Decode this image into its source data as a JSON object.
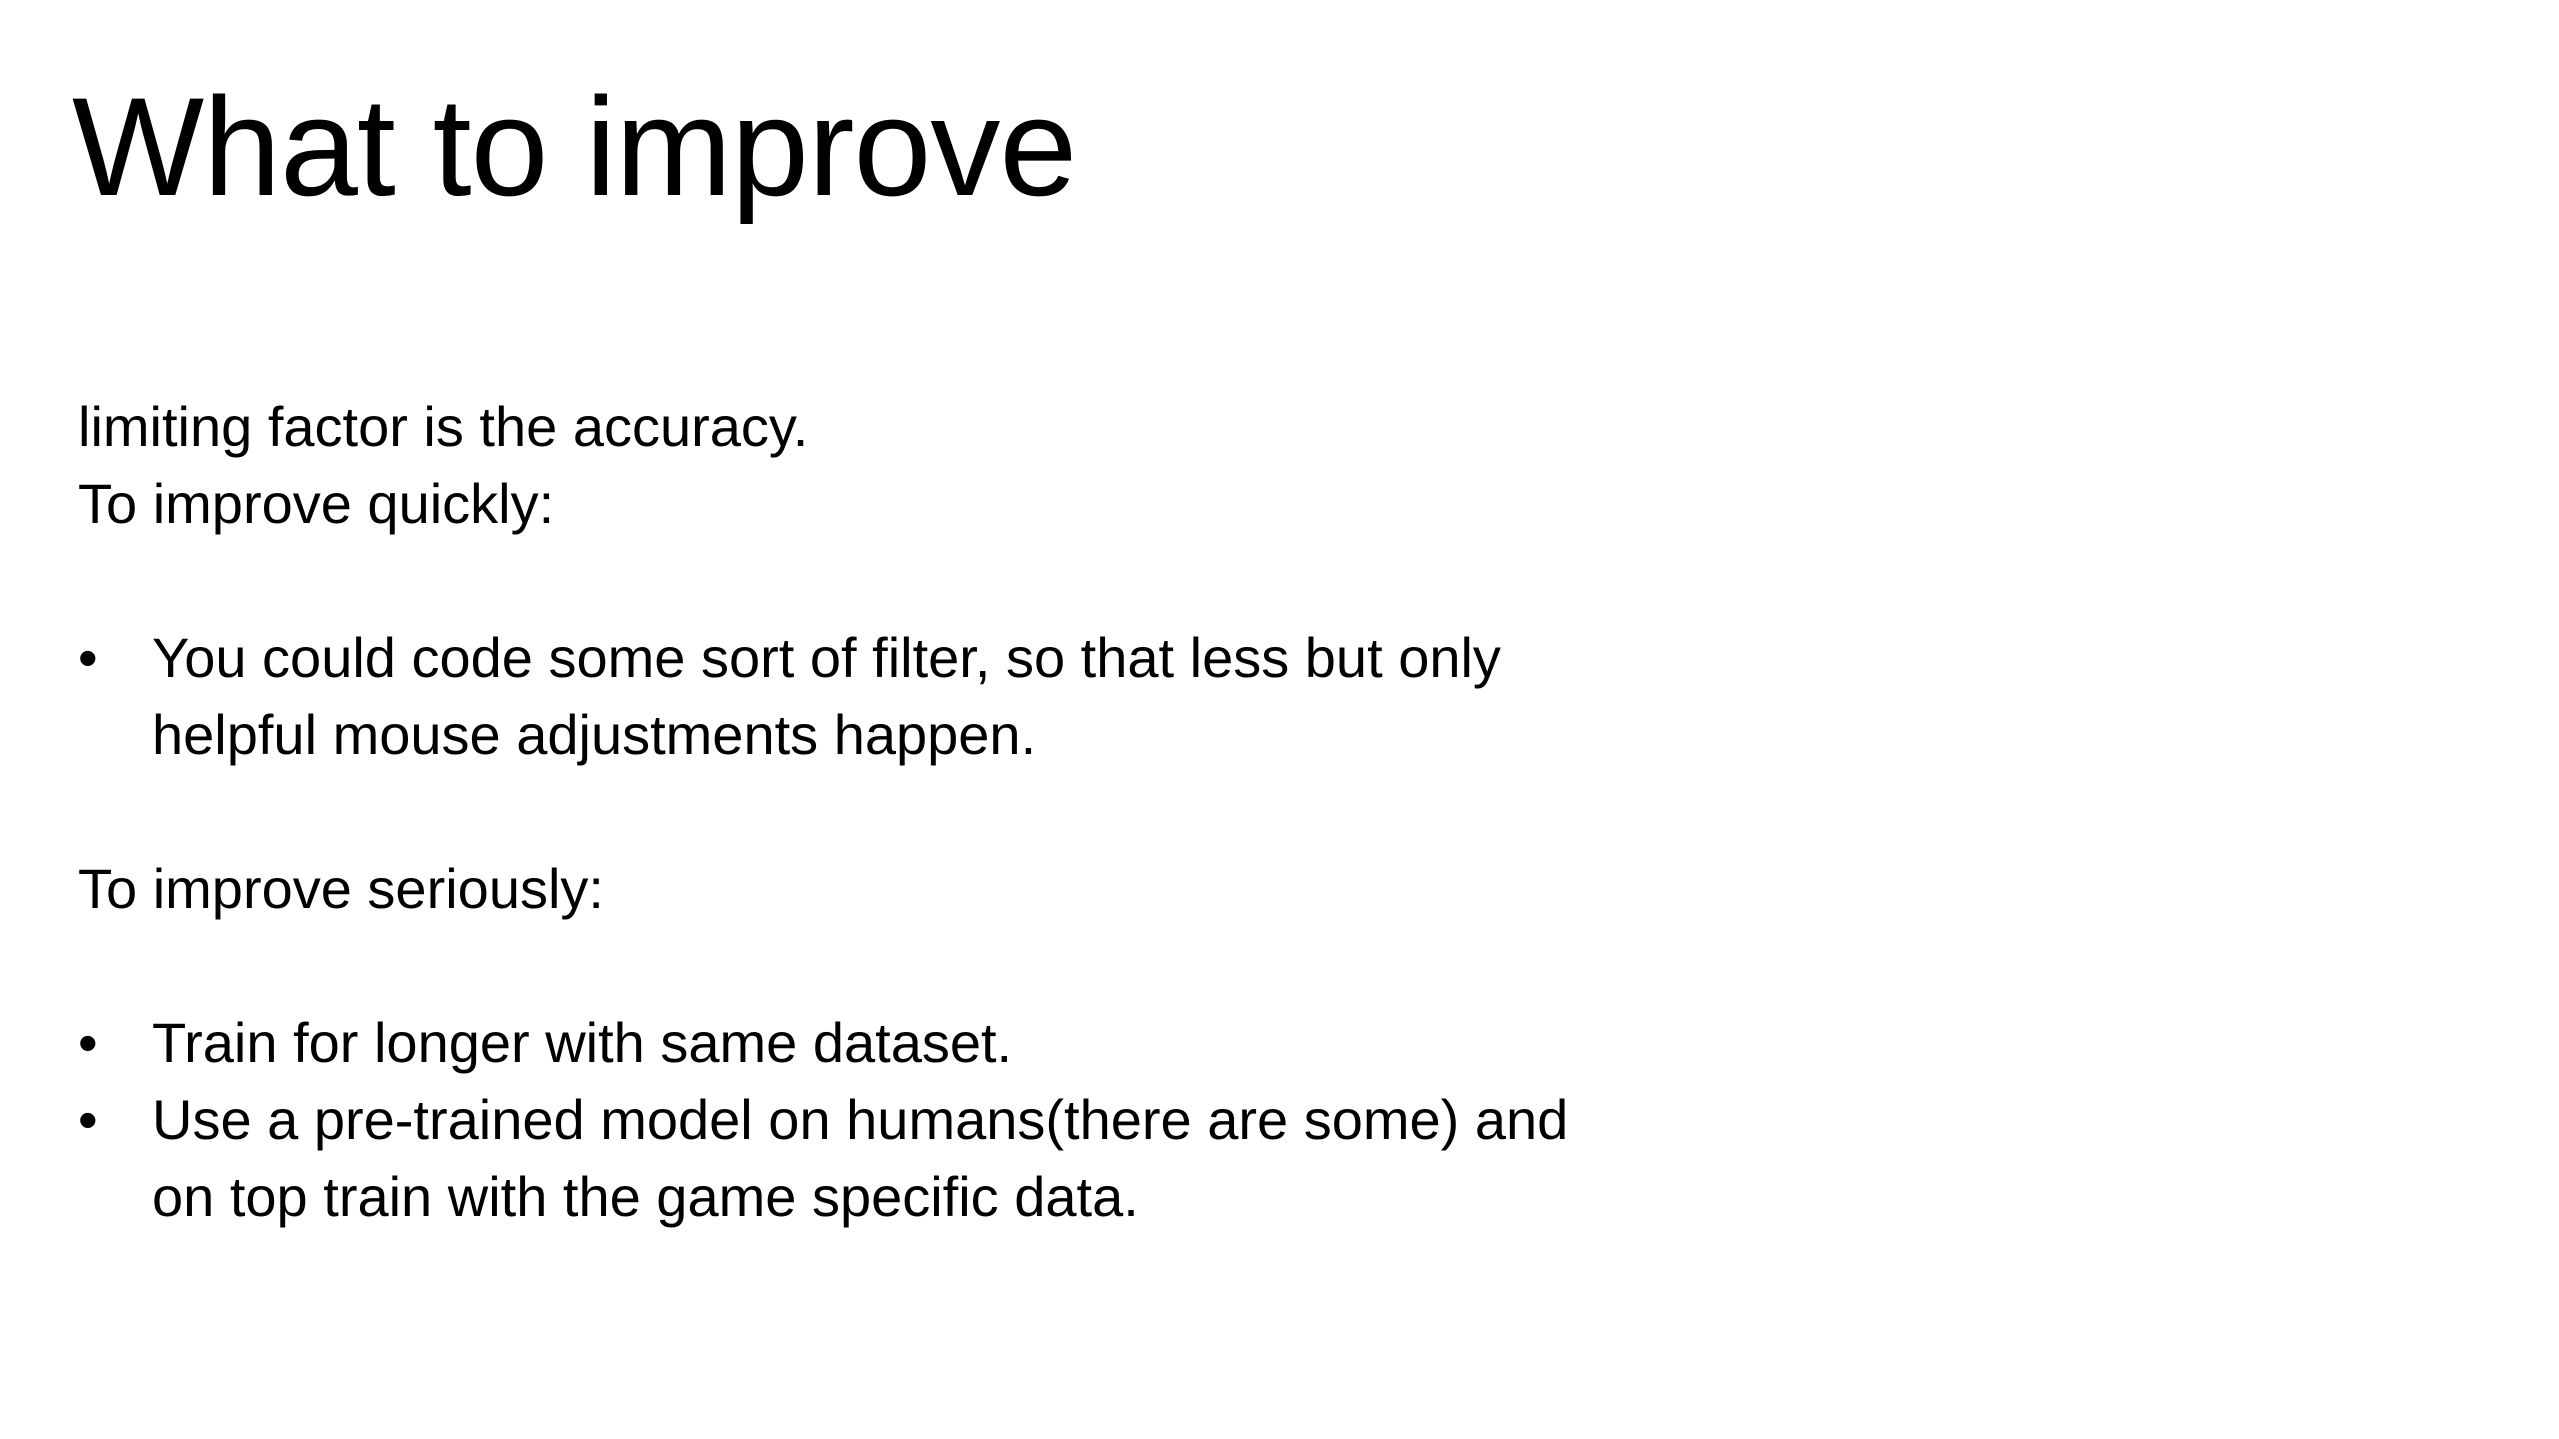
{
  "slide": {
    "title": "What to improve",
    "intro_lines": [
      "limiting factor is the accuracy.",
      "To improve quickly:"
    ],
    "quick_bullets": [
      {
        "marker": "•",
        "lines": [
          "You could code some sort of filter, so that less but only",
          "helpful mouse adjustments happen."
        ]
      }
    ],
    "serious_heading": "To improve seriously:",
    "serious_bullets": [
      {
        "marker": "•",
        "lines": [
          "Train for longer with same dataset."
        ]
      },
      {
        "marker": "•",
        "lines": [
          "Use a pre-trained model on humans(there are some) and",
          "on top train with the game specific data."
        ]
      }
    ]
  }
}
